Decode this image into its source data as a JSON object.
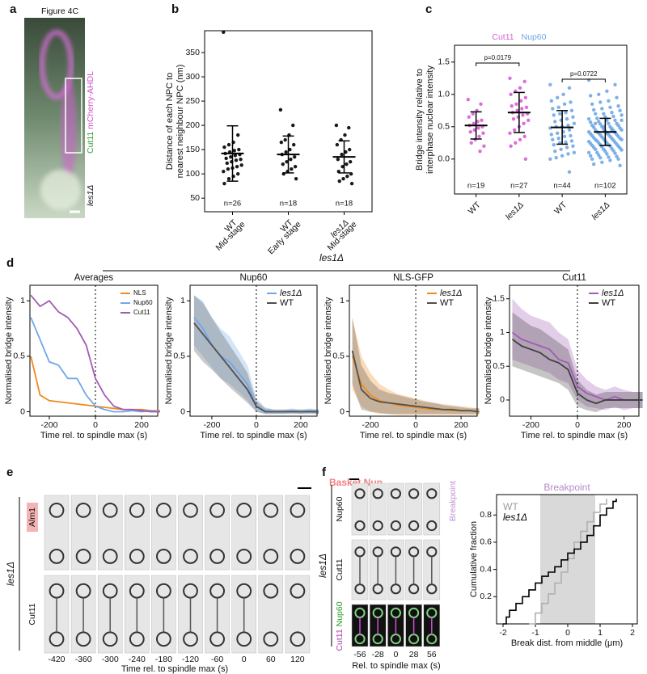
{
  "panel_labels": [
    "a",
    "b",
    "c",
    "d",
    "e",
    "f"
  ],
  "d_header": "les1Δ",
  "panel_a": {
    "title": "Figure 4C",
    "channel_1": "Cut11",
    "channel_2": "mCherry-AHDL",
    "strain": "les1Δ"
  },
  "panel_e": {
    "title": "Basket Nup",
    "rows": [
      "Alm1",
      "Cut11"
    ],
    "strain": "les1Δ",
    "times": [
      -420,
      -360,
      -300,
      -240,
      -180,
      -120,
      -60,
      0,
      60,
      120
    ],
    "xlabel": "Time rel. to spindle max (s)"
  },
  "panel_f": {
    "rows": [
      "Nup60",
      "Cut11"
    ],
    "merge": [
      "Cut11",
      "Nup60"
    ],
    "strain": "les1Δ",
    "side_label": "Breakpoint",
    "times": [
      -56,
      -28,
      0,
      28,
      56
    ],
    "xlabel": "Rel. to spindle max (s)"
  },
  "chart_data": [
    {
      "type": "strip",
      "ylabel": [
        "Distance of each NPC to",
        "nearest neighbour NPC (nm)"
      ],
      "ylim": [
        22,
        395
      ],
      "yticks": [
        50,
        100,
        150,
        200,
        250,
        300,
        350
      ],
      "color": "#000000",
      "categories": [
        [
          "WT",
          "Mid-stage"
        ],
        [
          "WT",
          "Early stage"
        ],
        [
          "les1Δ",
          "Mid-stage"
        ]
      ],
      "groups": [
        {
          "n_label": "n=26",
          "mean": 142,
          "sd": 57,
          "values": [
            392,
            180,
            165,
            160,
            155,
            150,
            148,
            145,
            142,
            140,
            138,
            135,
            132,
            130,
            128,
            125,
            122,
            118,
            115,
            112,
            110,
            105,
            100,
            95,
            90,
            80
          ]
        },
        {
          "n_label": "n=18",
          "mean": 140,
          "sd": 38,
          "values": [
            232,
            200,
            180,
            170,
            165,
            160,
            150,
            145,
            140,
            135,
            130,
            125,
            120,
            115,
            110,
            105,
            100,
            90
          ]
        },
        {
          "n_label": "n=18",
          "mean": 135,
          "sd": 33,
          "values": [
            200,
            195,
            180,
            170,
            160,
            150,
            145,
            140,
            130,
            125,
            120,
            115,
            105,
            100,
            95,
            90,
            85,
            80
          ]
        }
      ]
    },
    {
      "type": "strip",
      "ylabel": [
        "Bridge intensity relative to",
        "interphase nuclear intensity"
      ],
      "ylim": [
        -0.54,
        1.76
      ],
      "yticks": [
        {
          "value": 0,
          "label": "0.0"
        },
        0.5,
        {
          "value": 1,
          "label": "1.0"
        },
        1.5
      ],
      "legend": [
        {
          "name": "Cut11",
          "color": "#d65fd6"
        },
        {
          "name": "Nup60",
          "color": "#6fa8e6"
        }
      ],
      "annotations": [
        {
          "text": "p=0.0179",
          "from": 0,
          "to": 1
        },
        {
          "text": "p=0.0722",
          "from": 2,
          "to": 3
        }
      ],
      "categories": [
        [
          "WT"
        ],
        [
          "les1Δ"
        ],
        [
          "WT"
        ],
        [
          "les1Δ"
        ]
      ],
      "groups": [
        {
          "n_label": "n=19",
          "color": "#d65fd6",
          "mean": 0.52,
          "sd": 0.21,
          "values": [
            0.92,
            0.85,
            0.75,
            0.7,
            0.65,
            0.6,
            0.58,
            0.55,
            0.52,
            0.5,
            0.48,
            0.45,
            0.42,
            0.4,
            0.35,
            0.3,
            0.25,
            0.2,
            0.12
          ]
        },
        {
          "n_label": "n=27",
          "color": "#d65fd6",
          "mean": 0.72,
          "sd": 0.31,
          "values": [
            1.25,
            1.2,
            1.1,
            1.05,
            1.0,
            0.95,
            0.9,
            0.85,
            0.82,
            0.8,
            0.78,
            0.75,
            0.72,
            0.7,
            0.68,
            0.65,
            0.62,
            0.6,
            0.55,
            0.5,
            0.45,
            0.4,
            0.35,
            0.3,
            0.25,
            0.2,
            0.0
          ]
        },
        {
          "n_label": "n=44",
          "color": "#6fa8e6",
          "mean": 0.49,
          "sd": 0.26,
          "values": [
            1.15,
            1.1,
            1.0,
            0.95,
            0.9,
            0.88,
            0.85,
            0.8,
            0.78,
            0.75,
            0.72,
            0.7,
            0.68,
            0.65,
            0.62,
            0.6,
            0.58,
            0.55,
            0.52,
            0.5,
            0.5,
            0.48,
            0.45,
            0.42,
            0.4,
            0.38,
            0.36,
            0.35,
            0.32,
            0.3,
            0.28,
            0.26,
            0.25,
            0.22,
            0.2,
            0.18,
            0.15,
            0.12,
            0.1,
            0.08,
            0.05,
            0.02,
            0.0,
            -0.2
          ]
        },
        {
          "n_label": "n=102",
          "color": "#6fa8e6",
          "mean": 0.42,
          "sd": 0.21,
          "values": [
            1.22,
            1.15,
            1.05,
            1.0,
            0.98,
            0.95,
            0.9,
            0.88,
            0.85,
            0.82,
            0.8,
            0.78,
            0.76,
            0.75,
            0.72,
            0.7,
            0.7,
            0.68,
            0.66,
            0.65,
            0.63,
            0.62,
            0.6,
            0.6,
            0.58,
            0.57,
            0.55,
            0.55,
            0.54,
            0.52,
            0.52,
            0.5,
            0.5,
            0.49,
            0.48,
            0.47,
            0.46,
            0.45,
            0.45,
            0.44,
            0.43,
            0.42,
            0.42,
            0.41,
            0.4,
            0.4,
            0.39,
            0.38,
            0.38,
            0.37,
            0.36,
            0.35,
            0.35,
            0.34,
            0.33,
            0.32,
            0.32,
            0.31,
            0.3,
            0.3,
            0.29,
            0.28,
            0.28,
            0.27,
            0.26,
            0.25,
            0.25,
            0.24,
            0.23,
            0.22,
            0.22,
            0.21,
            0.2,
            0.2,
            0.19,
            0.18,
            0.17,
            0.16,
            0.15,
            0.15,
            0.14,
            0.13,
            0.12,
            0.1,
            0.1,
            0.09,
            0.08,
            0.06,
            0.05,
            0.04,
            0.03,
            0.02,
            0.0,
            0.0,
            -0.02,
            -0.05,
            -0.08,
            -0.1,
            0.45,
            0.5,
            0.55,
            0.6
          ]
        }
      ]
    },
    {
      "type": "line",
      "title": "Averages",
      "xlabel": "Time rel. to spindle max (s)",
      "ylabel": "Normalised bridge intensity",
      "xlim": [
        -284,
        270
      ],
      "ylim": [
        -0.04,
        1.14
      ],
      "xticks": [
        -200,
        0,
        200
      ],
      "yticks": [
        0,
        0.5,
        1
      ],
      "vline": 0,
      "x": [
        -280,
        -240,
        -200,
        -160,
        -120,
        -80,
        -40,
        0,
        40,
        80,
        120,
        160,
        200,
        240,
        280
      ],
      "series": [
        {
          "name": "NLS",
          "color": "#f08a1c",
          "values": [
            0.5,
            0.15,
            0.1,
            0.09,
            0.08,
            0.07,
            0.06,
            0.05,
            0.04,
            0.03,
            0.02,
            0.02,
            0.02,
            0.01,
            0.01
          ]
        },
        {
          "name": "Nup60",
          "color": "#6fa8e6",
          "values": [
            0.85,
            0.65,
            0.45,
            0.42,
            0.3,
            0.3,
            0.15,
            0.05,
            0.02,
            0.0,
            0.0,
            0.01,
            0.0,
            0.01,
            0.0
          ]
        },
        {
          "name": "Cut11",
          "color": "#a05cb4",
          "values": [
            1.05,
            0.95,
            1.0,
            0.9,
            0.85,
            0.75,
            0.6,
            0.3,
            0.15,
            0.05,
            0.02,
            0.02,
            0.01,
            0.0,
            0.0
          ]
        }
      ]
    },
    {
      "type": "line",
      "title": "Nup60",
      "xlabel": "Time rel. to spindle max (s)",
      "ylabel": "Normalised bridge intensity",
      "xlim": [
        -298,
        273
      ],
      "ylim": [
        -0.04,
        1.14
      ],
      "xticks": [
        -200,
        0,
        200
      ],
      "yticks": [
        0,
        0.5,
        1
      ],
      "vline": 0,
      "x": [
        -280,
        -240,
        -200,
        -160,
        -120,
        -80,
        -40,
        0,
        40,
        80,
        120,
        160,
        200,
        240,
        280
      ],
      "series": [
        {
          "name": "les1Δ",
          "color": "#6fa8e6",
          "values": [
            0.85,
            0.75,
            0.6,
            0.5,
            0.45,
            0.35,
            0.25,
            0.05,
            0.01,
            0.0,
            0.0,
            0.01,
            0.0,
            0.01,
            0.0
          ],
          "lower": [
            0.6,
            0.5,
            0.4,
            0.3,
            0.25,
            0.18,
            0.1,
            0.0,
            -0.02,
            -0.02,
            -0.02,
            -0.01,
            -0.02,
            -0.01,
            -0.02
          ],
          "upper": [
            1.05,
            1.0,
            0.85,
            0.75,
            0.68,
            0.55,
            0.42,
            0.12,
            0.04,
            0.02,
            0.02,
            0.03,
            0.02,
            0.03,
            0.02
          ]
        },
        {
          "name": "WT",
          "color": "#505050",
          "values": [
            0.8,
            0.7,
            0.6,
            0.5,
            0.4,
            0.3,
            0.2,
            0.05,
            0.0,
            0.0,
            0.0,
            0.0,
            0.0,
            0.0,
            0.0
          ],
          "lower": [
            0.55,
            0.45,
            0.38,
            0.3,
            0.22,
            0.15,
            0.08,
            0.0,
            -0.02,
            -0.02,
            -0.02,
            -0.02,
            -0.02,
            -0.02,
            -0.02
          ],
          "upper": [
            1.05,
            0.98,
            0.85,
            0.72,
            0.6,
            0.48,
            0.35,
            0.1,
            0.03,
            0.02,
            0.02,
            0.02,
            0.02,
            0.02,
            0.02
          ]
        }
      ]
    },
    {
      "type": "line",
      "title": "NLS-GFP",
      "xlabel": "Time rel. to spindle max (s)",
      "ylabel": "Normalised bridge intensity",
      "xlim": [
        -293,
        271
      ],
      "ylim": [
        -0.04,
        1.14
      ],
      "xticks": [
        -200,
        0,
        200
      ],
      "yticks": [
        0,
        0.5,
        1
      ],
      "vline": 0,
      "x": [
        -280,
        -240,
        -200,
        -160,
        -120,
        -80,
        -40,
        0,
        40,
        80,
        120,
        160,
        200,
        240,
        280
      ],
      "series": [
        {
          "name": "les1Δ",
          "color": "#f08a1c",
          "values": [
            0.5,
            0.25,
            0.15,
            0.1,
            0.08,
            0.06,
            0.05,
            0.04,
            0.03,
            0.02,
            0.02,
            0.01,
            0.01,
            0.01,
            0.0
          ],
          "lower": [
            0.2,
            0.05,
            0.0,
            -0.02,
            -0.02,
            -0.03,
            -0.03,
            -0.03,
            -0.03,
            -0.03,
            -0.03,
            -0.03,
            -0.03,
            -0.03,
            -0.03
          ],
          "upper": [
            0.85,
            0.5,
            0.35,
            0.25,
            0.2,
            0.16,
            0.14,
            0.12,
            0.1,
            0.08,
            0.07,
            0.06,
            0.05,
            0.04,
            0.03
          ]
        },
        {
          "name": "WT",
          "color": "#505050",
          "values": [
            0.55,
            0.2,
            0.12,
            0.09,
            0.08,
            0.07,
            0.06,
            0.05,
            0.04,
            0.03,
            0.02,
            0.02,
            0.01,
            0.01,
            0.0
          ],
          "lower": [
            0.25,
            0.02,
            0.0,
            -0.01,
            -0.02,
            -0.02,
            -0.02,
            -0.02,
            -0.02,
            -0.02,
            -0.02,
            -0.02,
            -0.02,
            -0.02,
            -0.02
          ],
          "upper": [
            0.85,
            0.42,
            0.28,
            0.2,
            0.17,
            0.15,
            0.13,
            0.11,
            0.09,
            0.08,
            0.06,
            0.05,
            0.04,
            0.03,
            0.03
          ]
        }
      ]
    },
    {
      "type": "line",
      "title": "Cut11",
      "xlabel": "Time rel. to spindle max (s)",
      "ylabel": "Normalised bridge intensity",
      "xlim": [
        -292,
        264
      ],
      "ylim": [
        -0.24,
        1.7
      ],
      "xticks": [
        -200,
        0,
        200
      ],
      "yticks": [
        0,
        0.5,
        1,
        1.5
      ],
      "vline": 0,
      "x": [
        -280,
        -240,
        -200,
        -160,
        -120,
        -80,
        -40,
        0,
        40,
        80,
        120,
        160,
        200,
        240,
        280
      ],
      "series": [
        {
          "name": "les1Δ",
          "color": "#a05cb4",
          "values": [
            1.0,
            0.9,
            0.85,
            0.8,
            0.75,
            0.6,
            0.55,
            0.2,
            0.1,
            0.05,
            0.0,
            0.05,
            0.0,
            0.0,
            0.0
          ],
          "lower": [
            0.6,
            0.55,
            0.5,
            0.45,
            0.4,
            0.3,
            0.25,
            0.0,
            -0.1,
            -0.12,
            -0.15,
            -0.1,
            -0.15,
            -0.12,
            -0.12
          ],
          "upper": [
            1.5,
            1.35,
            1.25,
            1.2,
            1.15,
            1.0,
            0.9,
            0.45,
            0.3,
            0.2,
            0.15,
            0.2,
            0.15,
            0.12,
            0.12
          ]
        },
        {
          "name": "WT",
          "color": "#404040",
          "values": [
            0.9,
            0.8,
            0.75,
            0.7,
            0.6,
            0.55,
            0.45,
            0.1,
            0.0,
            -0.05,
            0.0,
            0.0,
            0.0,
            0.0,
            0.0
          ],
          "lower": [
            0.5,
            0.45,
            0.4,
            0.35,
            0.3,
            0.25,
            0.15,
            -0.1,
            -0.15,
            -0.18,
            -0.12,
            -0.12,
            -0.12,
            -0.12,
            -0.12
          ],
          "upper": [
            1.3,
            1.2,
            1.1,
            1.05,
            0.95,
            0.85,
            0.75,
            0.3,
            0.15,
            0.08,
            0.12,
            0.12,
            0.12,
            0.12,
            0.12
          ]
        }
      ]
    },
    {
      "type": "step",
      "title": "Breakpoint",
      "title_color": "#b58ac8",
      "xlabel": "Break dist. from middle (μm)",
      "ylabel": "Cumulative fraction",
      "xlim": [
        -2.2,
        2.15
      ],
      "ylim": [
        0,
        0.95
      ],
      "xticks": [
        -2,
        -1,
        0,
        1,
        2
      ],
      "yticks": [
        0.2,
        0.4,
        0.6,
        0.8
      ],
      "shade": [
        -0.85,
        0.85
      ],
      "series": [
        {
          "name": "WT",
          "color": "#b0b0b0",
          "x": [
            -1.2,
            -1.0,
            -0.8,
            -0.6,
            -0.4,
            -0.2,
            0,
            0.2,
            0.4,
            0.6,
            0.8,
            1.0,
            1.2
          ],
          "values": [
            0,
            0.08,
            0.15,
            0.22,
            0.3,
            0.38,
            0.48,
            0.6,
            0.68,
            0.75,
            0.82,
            0.88,
            0.92
          ]
        },
        {
          "name": "les1Δ",
          "color": "#000000",
          "x": [
            -2.0,
            -1.9,
            -1.8,
            -1.6,
            -1.4,
            -1.2,
            -1.0,
            -0.8,
            -0.6,
            -0.4,
            -0.2,
            0,
            0.2,
            0.4,
            0.6,
            0.8,
            1.0,
            1.2,
            1.4,
            1.5
          ],
          "values": [
            0,
            0.05,
            0.1,
            0.15,
            0.2,
            0.25,
            0.3,
            0.35,
            0.38,
            0.42,
            0.47,
            0.52,
            0.55,
            0.6,
            0.65,
            0.72,
            0.8,
            0.85,
            0.9,
            0.92
          ]
        }
      ]
    }
  ]
}
